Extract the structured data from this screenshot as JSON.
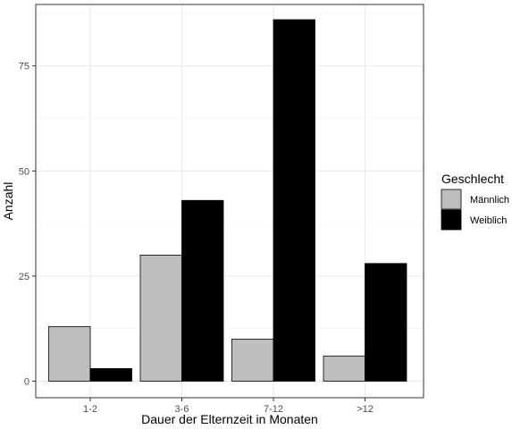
{
  "chart_data": {
    "type": "bar",
    "categories": [
      "1-2",
      "3-6",
      "7-12",
      ">12"
    ],
    "series": [
      {
        "name": "Männlich",
        "values": [
          13,
          30,
          10,
          6
        ],
        "color": "#bebebe"
      },
      {
        "name": "Weiblich",
        "values": [
          3,
          43,
          86,
          28
        ],
        "color": "#000000"
      }
    ],
    "xlabel": "Dauer der Elternzeit in Monaten",
    "ylabel": "Anzahl",
    "ylim": [
      0,
      90
    ],
    "yticks": [
      0,
      25,
      50,
      75
    ],
    "grid": true,
    "legend": {
      "title": "Geschlecht",
      "position": "right"
    }
  }
}
